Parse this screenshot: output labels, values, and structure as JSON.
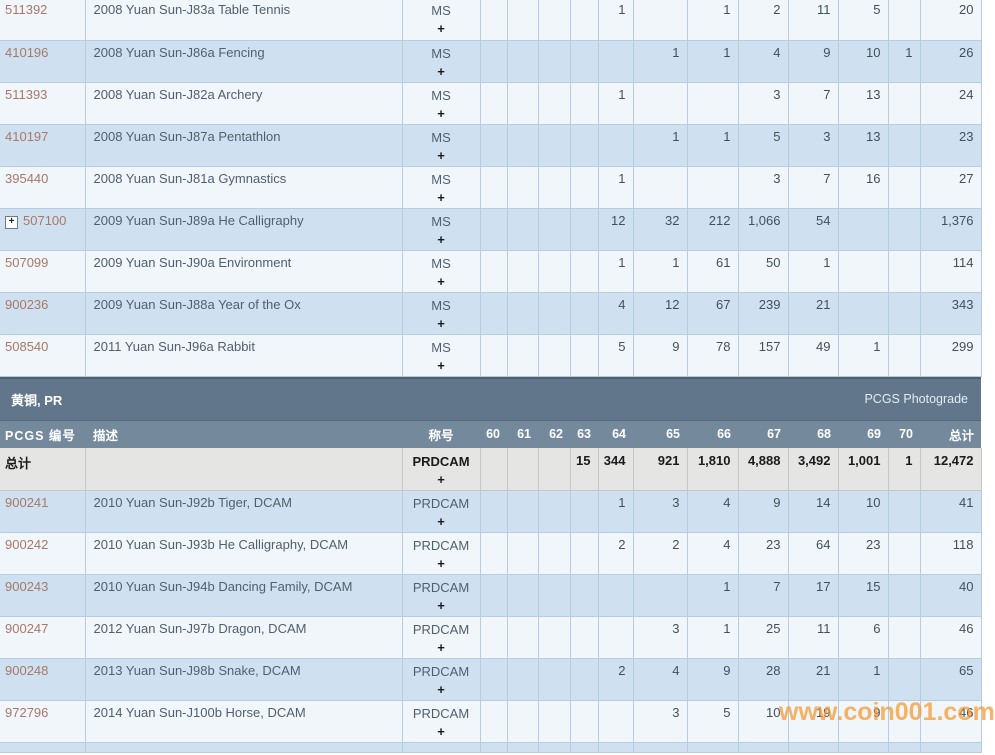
{
  "section": {
    "title": "黄铜, PR",
    "photograde_link": "PCGS Photograde"
  },
  "columns": {
    "labels": {
      "pcgs": "PCGS 编号",
      "desc": "描述",
      "desig": "称号",
      "total": "总计"
    },
    "grades": [
      "60",
      "61",
      "62",
      "63",
      "64",
      "65",
      "66",
      "67",
      "68",
      "69",
      "70"
    ]
  },
  "plus": "+",
  "expand_icon": "+",
  "ms_table": {
    "designation": "MS",
    "rows": [
      {
        "no": "511392",
        "desc": "2008 Yuan Sun-J83a Table Tennis",
        "grades": {
          "64": "1",
          "66": "1",
          "67": "2",
          "68": "11",
          "69": "5"
        },
        "total": "20"
      },
      {
        "no": "410196",
        "desc": "2008 Yuan Sun-J86a Fencing",
        "grades": {
          "65": "1",
          "66": "1",
          "67": "4",
          "68": "9",
          "69": "10",
          "70": "1"
        },
        "total": "26"
      },
      {
        "no": "511393",
        "desc": "2008 Yuan Sun-J82a Archery",
        "grades": {
          "64": "1",
          "67": "3",
          "68": "7",
          "69": "13"
        },
        "total": "24"
      },
      {
        "no": "410197",
        "desc": "2008 Yuan Sun-J87a Pentathlon",
        "grades": {
          "65": "1",
          "66": "1",
          "67": "5",
          "68": "3",
          "69": "13"
        },
        "total": "23"
      },
      {
        "no": "395440",
        "desc": "2008 Yuan Sun-J81a Gymnastics",
        "grades": {
          "64": "1",
          "67": "3",
          "68": "7",
          "69": "16"
        },
        "total": "27"
      },
      {
        "no": "507100",
        "desc": "2009 Yuan Sun-J89a He Calligraphy",
        "grades": {
          "64": "12",
          "65": "32",
          "66": "212",
          "67": "1,066",
          "68": "54"
        },
        "total": "1,376",
        "expand": true
      },
      {
        "no": "507099",
        "desc": "2009 Yuan Sun-J90a Environment",
        "grades": {
          "64": "1",
          "65": "1",
          "66": "61",
          "67": "50",
          "68": "1"
        },
        "total": "114"
      },
      {
        "no": "900236",
        "desc": "2009 Yuan Sun-J88a Year of the Ox",
        "grades": {
          "64": "4",
          "65": "12",
          "66": "67",
          "67": "239",
          "68": "21"
        },
        "total": "343"
      },
      {
        "no": "508540",
        "desc": "2011 Yuan Sun-J96a Rabbit",
        "grades": {
          "64": "5",
          "65": "9",
          "66": "78",
          "67": "157",
          "68": "49",
          "69": "1"
        },
        "total": "299"
      }
    ]
  },
  "pr_table": {
    "designation": "PRDCAM",
    "total_row": {
      "label": "总计",
      "grades": {
        "63": "15",
        "64": "344",
        "65": "921",
        "66": "1,810",
        "67": "4,888",
        "68": "3,492",
        "69": "1,001",
        "70": "1"
      },
      "total": "12,472"
    },
    "rows": [
      {
        "no": "900241",
        "desc": "2010 Yuan Sun-J92b Tiger, DCAM",
        "grades": {
          "64": "1",
          "65": "3",
          "66": "4",
          "67": "9",
          "68": "14",
          "69": "10"
        },
        "total": "41"
      },
      {
        "no": "900242",
        "desc": "2010 Yuan Sun-J93b He Calligraphy, DCAM",
        "grades": {
          "64": "2",
          "65": "2",
          "66": "4",
          "67": "23",
          "68": "64",
          "69": "23"
        },
        "total": "118"
      },
      {
        "no": "900243",
        "desc": "2010 Yuan Sun-J94b Dancing Family, DCAM",
        "grades": {
          "66": "1",
          "67": "7",
          "68": "17",
          "69": "15"
        },
        "total": "40"
      },
      {
        "no": "900247",
        "desc": "2012 Yuan Sun-J97b Dragon, DCAM",
        "grades": {
          "65": "3",
          "66": "1",
          "67": "25",
          "68": "11",
          "69": "6"
        },
        "total": "46"
      },
      {
        "no": "900248",
        "desc": "2013 Yuan Sun-J98b Snake, DCAM",
        "grades": {
          "64": "2",
          "65": "4",
          "66": "9",
          "67": "28",
          "68": "21",
          "69": "1"
        },
        "total": "65"
      },
      {
        "no": "972796",
        "desc": "2014 Yuan Sun-J100b Horse, DCAM",
        "grades": {
          "65": "3",
          "66": "5",
          "67": "10",
          "68": "19",
          "69": "9"
        },
        "total": "46"
      }
    ]
  },
  "watermark": "www.coin001.com",
  "colors": {
    "band_bg": "#61768a",
    "header_bg": "#74899c",
    "row_white": "#f1f6fa",
    "row_blue": "#cfe1f0",
    "total_row_bg": "#e5e5e3",
    "cell_border": "#b6cce0",
    "pcgs_link": "#a87868",
    "watermark": "#f6962a"
  }
}
